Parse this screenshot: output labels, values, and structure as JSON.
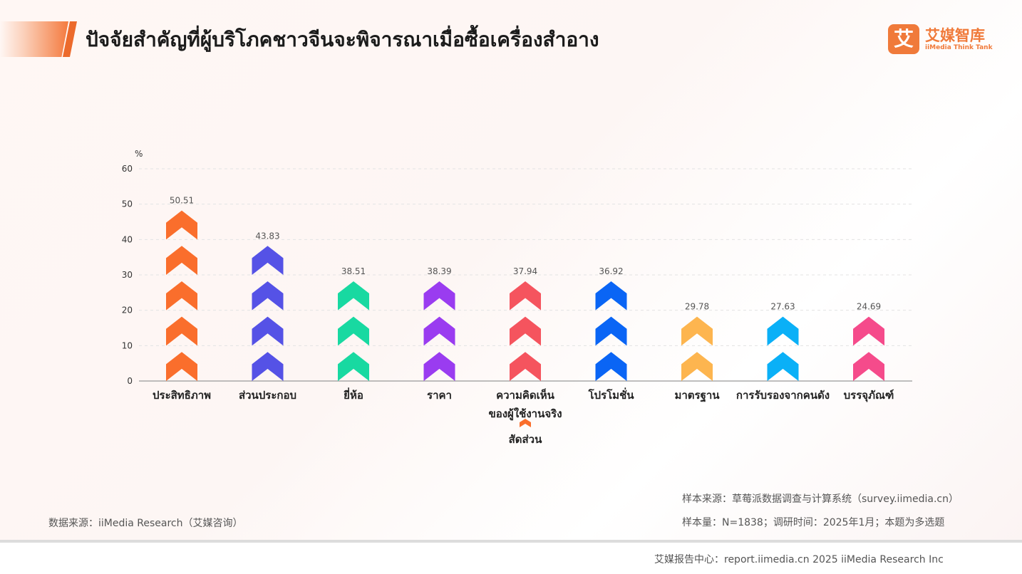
{
  "title": "ปัจจัยสำคัญที่ผู้บริโภคชาวจีนจะพิจารณาเมื่อซื้อเครื่องสำอาง",
  "logo": {
    "cn": "艾媒智库",
    "en": "iiMedia Think Tank",
    "mark": "艾"
  },
  "chart_data": {
    "type": "bar",
    "ylabel": "%",
    "ylim": [
      0,
      60
    ],
    "yticks": [
      0,
      10,
      20,
      30,
      40,
      50,
      60
    ],
    "grid": true,
    "legend_placement": "bottom-center",
    "legend_label": "สัดส่วน",
    "categories": [
      "ประสิทธิภาพ",
      "ส่วนประกอบ",
      "ยี่ห้อ",
      "ราคา",
      "ความคิดเห็น\nของผู้ใช้งานจริง",
      "โปรโมชั่น",
      "มาตรฐาน",
      "การรับรองจากคนดัง",
      "บรรจุภัณฑ์"
    ],
    "values": [
      50.51,
      43.83,
      38.51,
      38.39,
      37.94,
      36.92,
      29.78,
      27.63,
      24.69
    ],
    "value_labels": [
      "50.51",
      "43.83",
      "38.51",
      "38.39",
      "37.94",
      "36.92",
      "29.78",
      "27.63",
      "24.69"
    ],
    "colors": [
      "#fa6e2c",
      "#5552e6",
      "#18d9a1",
      "#9a3cf0",
      "#f5545e",
      "#0a65f5",
      "#fdb54f",
      "#0ab0f7",
      "#f54b8b"
    ],
    "legend_color": "#fa6e2c"
  },
  "footer": {
    "sample_source": "样本来源：草莓派数据调查与计算系统（survey.iimedia.cn）",
    "sample_size": "样本量：N=1838；调研时间：2025年1月；本题为多选题",
    "data_source": "数据来源：iiMedia Research（艾媒咨询）",
    "report_center": "艾媒报告中心：report.iimedia.cn   2025 iiMedia Research Inc"
  }
}
